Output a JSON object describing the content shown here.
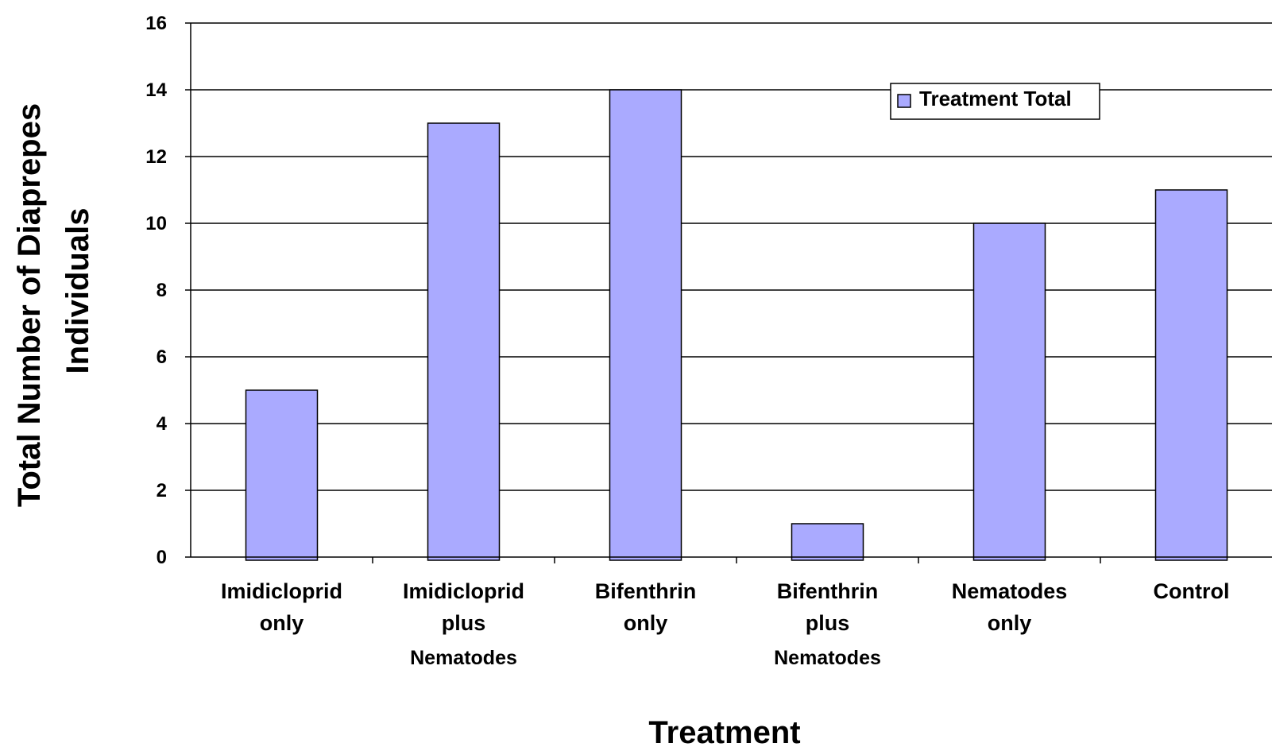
{
  "chart_data": {
    "type": "bar",
    "categories": [
      [
        "Imidicloprid",
        "only"
      ],
      [
        "Imidicloprid",
        "plus",
        "Nematodes"
      ],
      [
        "Bifenthrin",
        "only"
      ],
      [
        "Bifenthrin",
        "plus",
        "Nematodes"
      ],
      [
        "Nematodes",
        "only"
      ],
      [
        "Control"
      ]
    ],
    "series": [
      {
        "name": "Treatment Total",
        "values": [
          5,
          13,
          14,
          1,
          10,
          11
        ]
      }
    ],
    "xlabel": "Treatment",
    "ylabel": [
      "Total Number of Diaprepes",
      "Individuals"
    ],
    "ylim": [
      0,
      16
    ],
    "yticks": [
      0,
      2,
      4,
      6,
      8,
      10,
      12,
      14,
      16
    ],
    "grid": true,
    "legend_position": "top-right",
    "colors": {
      "bar_fill": "#aaaaff",
      "bar_stroke": "#000000",
      "grid": "#000000"
    }
  }
}
